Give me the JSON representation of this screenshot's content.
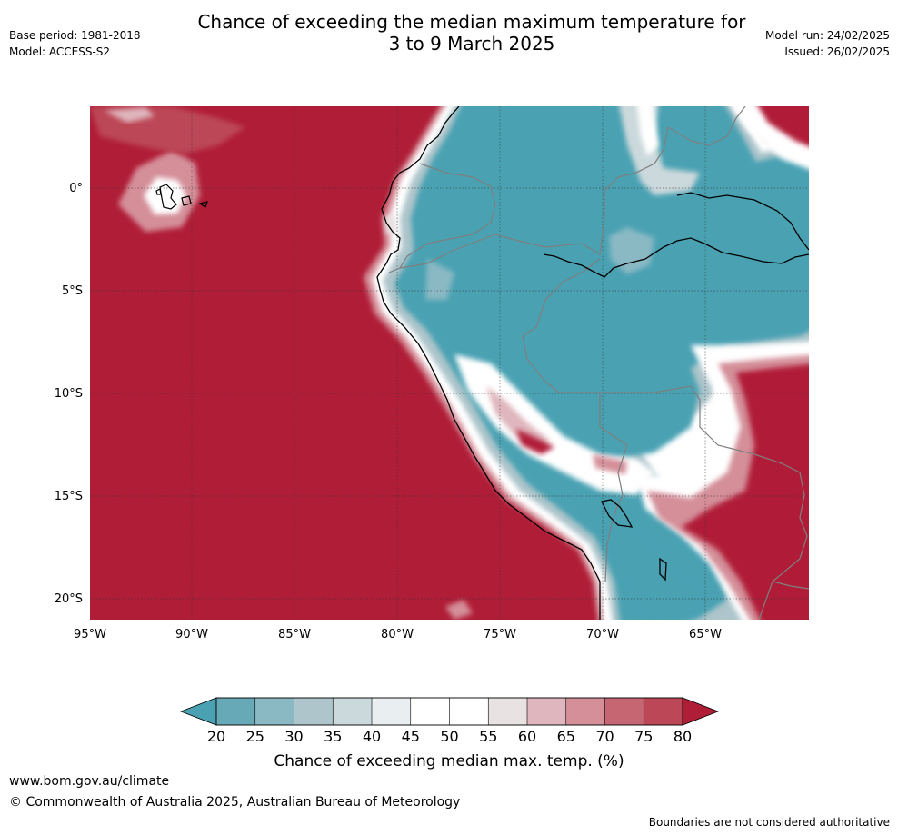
{
  "header": {
    "title_line1": "Chance of exceeding the median maximum temperature for",
    "title_line2": "3 to 9 March 2025",
    "base_period": "Base period: 1981-2018",
    "model": "Model: ACCESS-S2",
    "model_run": "Model run: 24/02/2025",
    "issued": "Issued: 26/02/2025"
  },
  "map": {
    "lon_labels": [
      "95°W",
      "90°W",
      "85°W",
      "80°W",
      "75°W",
      "70°W",
      "65°W"
    ],
    "lat_labels": [
      "0°",
      "5°S",
      "10°S",
      "15°S",
      "20°S"
    ],
    "colors": {
      "ocean_warm": "#b01d37",
      "land_cool": "#4aa1b2",
      "coast_line": "#000000",
      "border_line": "#7f7f7f",
      "grid_line": "#333333"
    }
  },
  "colorbar": {
    "ticks": [
      "20",
      "25",
      "30",
      "35",
      "40",
      "45",
      "50",
      "55",
      "60",
      "65",
      "70",
      "75",
      "80"
    ],
    "colors": [
      "#4aa1b2",
      "#68a9b8",
      "#8ab9c4",
      "#adc5cb",
      "#ccd9dc",
      "#e9eff1",
      "#ffffff",
      "#ffffff",
      "#e8e2e3",
      "#dfb6bd",
      "#d48f99",
      "#c66673",
      "#bc4757",
      "#b01d37"
    ],
    "label": "Chance of exceeding median max. temp. (%)"
  },
  "footer": {
    "url": "www.bom.gov.au/climate",
    "copyright": "© Commonwealth of Australia 2025, Australian Bureau of Meteorology",
    "disclaimer": "Boundaries are not considered authoritative"
  }
}
